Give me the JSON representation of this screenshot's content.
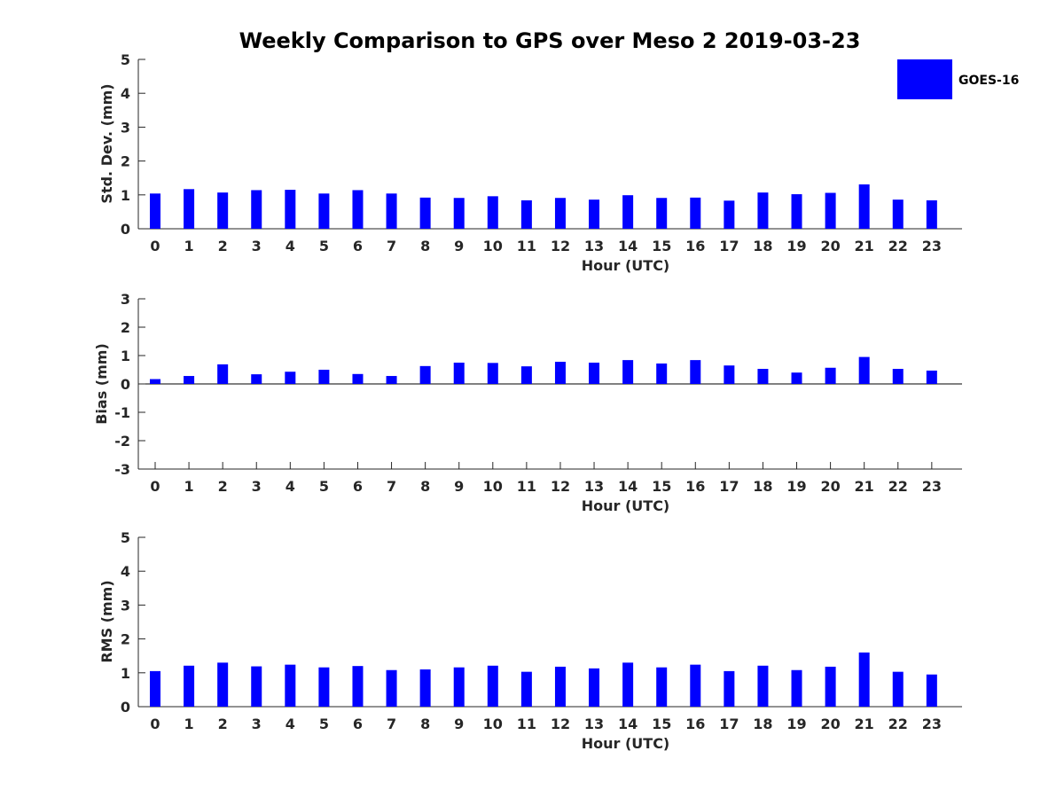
{
  "figure": {
    "title": "Weekly Comparison to GPS over Meso 2 2019-03-23",
    "legend": {
      "label": "GOES-16",
      "color": "#0000ff",
      "placement": "top-right"
    }
  },
  "chart_data": [
    {
      "type": "bar",
      "title": "Weekly Comparison to GPS over Meso 2 2019-03-23",
      "xlabel": "Hour (UTC)",
      "ylabel": "Std. Dev. (mm)",
      "ylim": [
        0,
        5
      ],
      "yticks": [
        0,
        1,
        2,
        3,
        4,
        5
      ],
      "categories": [
        "0",
        "1",
        "2",
        "3",
        "4",
        "5",
        "6",
        "7",
        "8",
        "9",
        "10",
        "11",
        "12",
        "13",
        "14",
        "15",
        "16",
        "17",
        "18",
        "19",
        "20",
        "21",
        "22",
        "23"
      ],
      "series": [
        {
          "name": "GOES-16",
          "color": "#0000ff",
          "values": [
            1.04,
            1.17,
            1.07,
            1.14,
            1.15,
            1.04,
            1.14,
            1.04,
            0.92,
            0.91,
            0.96,
            0.84,
            0.91,
            0.86,
            0.99,
            0.91,
            0.92,
            0.83,
            1.07,
            1.02,
            1.06,
            1.31,
            0.86,
            0.84
          ]
        }
      ]
    },
    {
      "type": "bar",
      "title": "",
      "xlabel": "Hour (UTC)",
      "ylabel": "Bias (mm)",
      "ylim": [
        -3,
        3
      ],
      "yticks": [
        -3,
        -2,
        -1,
        0,
        1,
        2,
        3
      ],
      "categories": [
        "0",
        "1",
        "2",
        "3",
        "4",
        "5",
        "6",
        "7",
        "8",
        "9",
        "10",
        "11",
        "12",
        "13",
        "14",
        "15",
        "16",
        "17",
        "18",
        "19",
        "20",
        "21",
        "22",
        "23"
      ],
      "series": [
        {
          "name": "GOES-16",
          "color": "#0000ff",
          "values": [
            0.17,
            0.28,
            0.69,
            0.34,
            0.43,
            0.5,
            0.35,
            0.28,
            0.63,
            0.75,
            0.74,
            0.62,
            0.78,
            0.75,
            0.84,
            0.72,
            0.84,
            0.65,
            0.53,
            0.4,
            0.57,
            0.95,
            0.53,
            0.47
          ]
        }
      ]
    },
    {
      "type": "bar",
      "title": "",
      "xlabel": "Hour (UTC)",
      "ylabel": "RMS (mm)",
      "ylim": [
        0,
        5
      ],
      "yticks": [
        0,
        1,
        2,
        3,
        4,
        5
      ],
      "categories": [
        "0",
        "1",
        "2",
        "3",
        "4",
        "5",
        "6",
        "7",
        "8",
        "9",
        "10",
        "11",
        "12",
        "13",
        "14",
        "15",
        "16",
        "17",
        "18",
        "19",
        "20",
        "21",
        "22",
        "23"
      ],
      "series": [
        {
          "name": "GOES-16",
          "color": "#0000ff",
          "values": [
            1.05,
            1.21,
            1.3,
            1.19,
            1.24,
            1.16,
            1.2,
            1.08,
            1.1,
            1.16,
            1.21,
            1.03,
            1.18,
            1.13,
            1.3,
            1.16,
            1.24,
            1.05,
            1.21,
            1.08,
            1.18,
            1.6,
            1.03,
            0.95
          ]
        }
      ]
    }
  ]
}
